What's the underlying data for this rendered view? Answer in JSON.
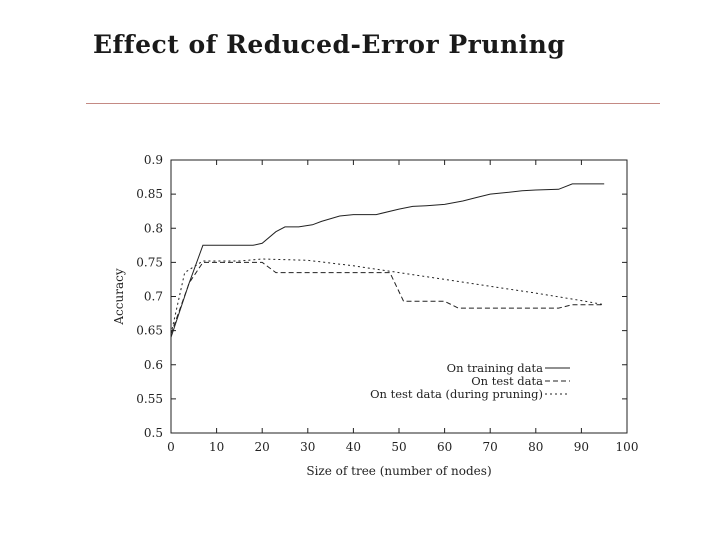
{
  "slide": {
    "title": "Effect of Reduced-Error Pruning"
  },
  "colors": {
    "rule": "#c48a84",
    "line": "#222222"
  },
  "chart_data": {
    "type": "line",
    "xlabel": "Size of tree (number of nodes)",
    "ylabel": "Accuracy",
    "xlim": [
      0,
      100
    ],
    "ylim": [
      0.5,
      0.9
    ],
    "xticks": [
      0,
      10,
      20,
      30,
      40,
      50,
      60,
      70,
      80,
      90,
      100
    ],
    "yticks": [
      0.5,
      0.55,
      0.6,
      0.65,
      0.7,
      0.75,
      0.8,
      0.85,
      0.9
    ],
    "grid": false,
    "legend": "bottom-right",
    "series": [
      {
        "name": "On training data",
        "style": "solid",
        "x": [
          0,
          4,
          7,
          10,
          14,
          18,
          20,
          23,
          25,
          28,
          31,
          33,
          37,
          40,
          45,
          50,
          53,
          56,
          60,
          64,
          67,
          70,
          73,
          77,
          80,
          85,
          88,
          95
        ],
        "y": [
          0.64,
          0.72,
          0.775,
          0.775,
          0.775,
          0.775,
          0.778,
          0.795,
          0.802,
          0.802,
          0.805,
          0.81,
          0.818,
          0.82,
          0.82,
          0.828,
          0.832,
          0.833,
          0.835,
          0.84,
          0.845,
          0.85,
          0.852,
          0.855,
          0.856,
          0.857,
          0.865,
          0.865
        ]
      },
      {
        "name": "On test data",
        "style": "dashed",
        "x": [
          0,
          4,
          7,
          10,
          15,
          20,
          23,
          30,
          40,
          48,
          51,
          60,
          63,
          70,
          80,
          85,
          88,
          95
        ],
        "y": [
          0.645,
          0.72,
          0.75,
          0.75,
          0.75,
          0.75,
          0.735,
          0.735,
          0.735,
          0.735,
          0.693,
          0.693,
          0.683,
          0.683,
          0.683,
          0.683,
          0.688,
          0.688
        ]
      },
      {
        "name": "On test data (during pruning)",
        "style": "dotted",
        "x": [
          0,
          3,
          7,
          10,
          15,
          20,
          30,
          40,
          50,
          60,
          70,
          80,
          90,
          95
        ],
        "y": [
          0.645,
          0.735,
          0.752,
          0.752,
          0.752,
          0.755,
          0.753,
          0.745,
          0.735,
          0.725,
          0.715,
          0.705,
          0.694,
          0.688
        ]
      }
    ]
  }
}
